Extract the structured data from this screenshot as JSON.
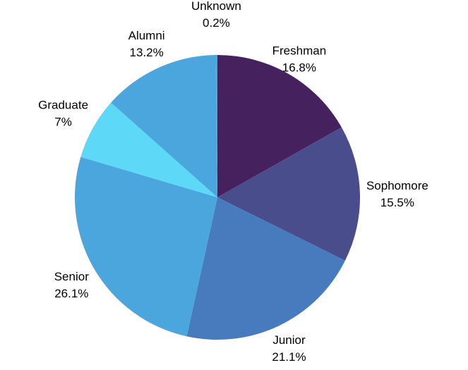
{
  "chart_data": {
    "type": "pie",
    "start_angle_deg": 0,
    "direction": "clockwise",
    "legend": "none",
    "slices": [
      {
        "label": "Freshman",
        "value": 16.8,
        "value_label": "16.8%",
        "color": "#45215e"
      },
      {
        "label": "Sophomore",
        "value": 15.5,
        "value_label": "15.5%",
        "color": "#4a4d8c"
      },
      {
        "label": "Junior",
        "value": 21.1,
        "value_label": "21.1%",
        "color": "#487bbe"
      },
      {
        "label": "Senior",
        "value": 26.1,
        "value_label": "26.1%",
        "color": "#4aa6dc"
      },
      {
        "label": "Graduate",
        "value": 7,
        "value_label": "7%",
        "color": "#5ed8f7"
      },
      {
        "label": "Alumni",
        "value": 13.2,
        "value_label": "13.2%",
        "color": "#4aa6dc"
      },
      {
        "label": "Unknown",
        "value": 0.2,
        "value_label": "0.2%",
        "color": "#4aa6dc"
      }
    ]
  }
}
